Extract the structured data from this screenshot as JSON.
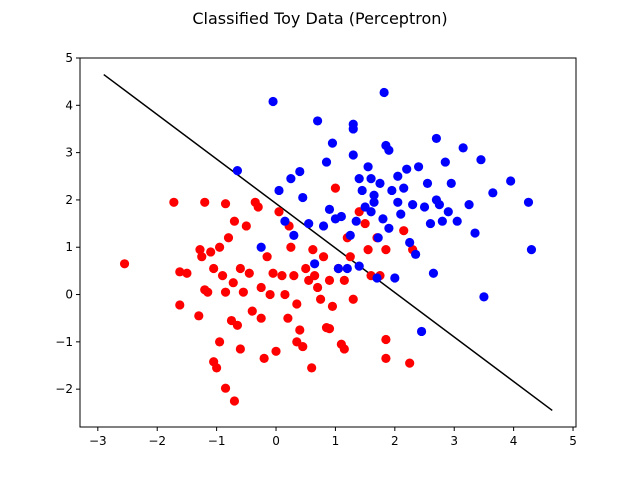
{
  "chart_data": {
    "type": "scatter",
    "title": "Classified Toy Data (Perceptron)",
    "xlabel": "",
    "ylabel": "",
    "xlim": [
      -3.3,
      5.05
    ],
    "ylim": [
      -2.8,
      5.0
    ],
    "xticks": [
      -3,
      -2,
      -1,
      0,
      1,
      2,
      3,
      4,
      5
    ],
    "xtick_labels": [
      "−3",
      "−2",
      "−1",
      "0",
      "1",
      "2",
      "3",
      "4",
      "5"
    ],
    "yticks": [
      -2,
      -1,
      0,
      1,
      2,
      3,
      4,
      5
    ],
    "ytick_labels": [
      "−2",
      "−1",
      "0",
      "1",
      "2",
      "3",
      "4",
      "5"
    ],
    "grid": false,
    "decision_boundary": {
      "x": [
        -2.9,
        4.65
      ],
      "y": [
        4.65,
        -2.45
      ],
      "color": "#000000"
    },
    "series": [
      {
        "color": "#ff0000",
        "points": [
          [
            -2.55,
            0.65
          ],
          [
            -1.72,
            1.95
          ],
          [
            -1.62,
            0.48
          ],
          [
            -1.62,
            -0.22
          ],
          [
            -1.5,
            0.45
          ],
          [
            -1.3,
            -0.45
          ],
          [
            -1.28,
            0.95
          ],
          [
            -1.25,
            0.8
          ],
          [
            -1.2,
            1.95
          ],
          [
            -1.15,
            0.05
          ],
          [
            -1.1,
            0.9
          ],
          [
            -1.05,
            0.55
          ],
          [
            -1.05,
            -1.42
          ],
          [
            -1.0,
            -1.55
          ],
          [
            -0.95,
            1.0
          ],
          [
            -0.9,
            0.4
          ],
          [
            -0.85,
            1.92
          ],
          [
            -0.85,
            0.05
          ],
          [
            -0.85,
            -1.98
          ],
          [
            -0.8,
            1.2
          ],
          [
            -0.75,
            -0.55
          ],
          [
            -0.72,
            0.25
          ],
          [
            -0.7,
            1.55
          ],
          [
            -0.65,
            -0.65
          ],
          [
            -0.6,
            0.55
          ],
          [
            -0.55,
            0.05
          ],
          [
            -0.5,
            1.45
          ],
          [
            -0.45,
            0.45
          ],
          [
            -0.4,
            -0.35
          ],
          [
            -0.35,
            1.95
          ],
          [
            -0.3,
            1.85
          ],
          [
            -0.25,
            0.15
          ],
          [
            -0.25,
            -0.5
          ],
          [
            -0.2,
            -1.35
          ],
          [
            -0.15,
            0.8
          ],
          [
            -0.1,
            0.0
          ],
          [
            -0.05,
            0.45
          ],
          [
            0.0,
            -1.2
          ],
          [
            0.05,
            1.75
          ],
          [
            0.1,
            0.4
          ],
          [
            0.15,
            0.0
          ],
          [
            0.2,
            -0.5
          ],
          [
            0.22,
            1.45
          ],
          [
            0.25,
            1.0
          ],
          [
            0.3,
            0.4
          ],
          [
            0.35,
            -0.2
          ],
          [
            0.4,
            -0.75
          ],
          [
            0.45,
            -1.1
          ],
          [
            0.5,
            0.55
          ],
          [
            0.55,
            0.3
          ],
          [
            0.6,
            -1.55
          ],
          [
            0.62,
            0.95
          ],
          [
            0.65,
            0.4
          ],
          [
            0.7,
            0.15
          ],
          [
            0.75,
            -0.1
          ],
          [
            0.8,
            0.8
          ],
          [
            0.85,
            -0.7
          ],
          [
            0.9,
            0.3
          ],
          [
            0.95,
            -0.25
          ],
          [
            1.0,
            2.25
          ],
          [
            1.05,
            0.55
          ],
          [
            1.1,
            -1.05
          ],
          [
            1.15,
            0.3
          ],
          [
            1.2,
            1.2
          ],
          [
            1.25,
            0.8
          ],
          [
            1.3,
            -0.1
          ],
          [
            1.4,
            1.75
          ],
          [
            1.5,
            1.5
          ],
          [
            1.55,
            0.95
          ],
          [
            1.6,
            0.4
          ],
          [
            1.7,
            1.2
          ],
          [
            1.75,
            0.4
          ],
          [
            1.85,
            0.95
          ],
          [
            1.85,
            -0.95
          ],
          [
            1.85,
            -1.35
          ],
          [
            2.15,
            1.35
          ],
          [
            2.25,
            -1.45
          ],
          [
            2.3,
            0.95
          ],
          [
            0.9,
            -0.72
          ],
          [
            -0.6,
            -1.15
          ],
          [
            -1.2,
            0.1
          ],
          [
            -0.95,
            -1.0
          ],
          [
            1.15,
            -1.15
          ],
          [
            -0.7,
            -2.25
          ],
          [
            0.35,
            -1.0
          ]
        ]
      },
      {
        "color": "#0000ff",
        "points": [
          [
            -0.05,
            4.08
          ],
          [
            -0.65,
            2.62
          ],
          [
            -0.25,
            1.0
          ],
          [
            0.05,
            2.2
          ],
          [
            0.15,
            1.55
          ],
          [
            0.25,
            2.45
          ],
          [
            0.3,
            1.25
          ],
          [
            0.4,
            2.6
          ],
          [
            0.45,
            2.05
          ],
          [
            0.55,
            1.5
          ],
          [
            0.65,
            0.65
          ],
          [
            0.7,
            3.67
          ],
          [
            0.8,
            1.45
          ],
          [
            0.85,
            2.8
          ],
          [
            0.9,
            1.8
          ],
          [
            0.95,
            3.2
          ],
          [
            1.0,
            1.6
          ],
          [
            1.05,
            0.55
          ],
          [
            1.1,
            1.65
          ],
          [
            1.2,
            0.55
          ],
          [
            1.25,
            1.25
          ],
          [
            1.3,
            3.6
          ],
          [
            1.3,
            2.95
          ],
          [
            1.35,
            1.55
          ],
          [
            1.4,
            2.45
          ],
          [
            1.45,
            2.2
          ],
          [
            1.5,
            1.85
          ],
          [
            1.55,
            2.7
          ],
          [
            1.6,
            1.75
          ],
          [
            1.65,
            2.1
          ],
          [
            1.7,
            0.35
          ],
          [
            1.72,
            1.2
          ],
          [
            1.75,
            2.35
          ],
          [
            1.8,
            1.6
          ],
          [
            1.82,
            4.27
          ],
          [
            1.85,
            3.15
          ],
          [
            1.9,
            1.4
          ],
          [
            1.95,
            2.2
          ],
          [
            2.0,
            0.35
          ],
          [
            2.05,
            2.5
          ],
          [
            2.1,
            1.7
          ],
          [
            2.15,
            2.25
          ],
          [
            2.2,
            2.65
          ],
          [
            2.25,
            1.1
          ],
          [
            2.3,
            1.9
          ],
          [
            2.35,
            0.85
          ],
          [
            2.4,
            2.7
          ],
          [
            2.45,
            -0.78
          ],
          [
            2.5,
            1.85
          ],
          [
            2.55,
            2.35
          ],
          [
            2.6,
            1.5
          ],
          [
            2.65,
            0.45
          ],
          [
            2.7,
            3.3
          ],
          [
            2.75,
            1.9
          ],
          [
            2.8,
            1.55
          ],
          [
            2.85,
            2.8
          ],
          [
            2.9,
            1.75
          ],
          [
            2.95,
            2.35
          ],
          [
            3.05,
            1.55
          ],
          [
            3.15,
            3.1
          ],
          [
            3.25,
            1.9
          ],
          [
            3.35,
            1.3
          ],
          [
            3.45,
            2.85
          ],
          [
            3.5,
            -0.05
          ],
          [
            3.65,
            2.15
          ],
          [
            3.95,
            2.4
          ],
          [
            4.25,
            1.95
          ],
          [
            4.3,
            0.95
          ],
          [
            1.3,
            3.5
          ],
          [
            1.9,
            3.05
          ],
          [
            2.7,
            2.0
          ],
          [
            1.6,
            2.45
          ],
          [
            2.05,
            1.95
          ],
          [
            1.4,
            0.6
          ],
          [
            1.65,
            1.95
          ]
        ]
      }
    ]
  }
}
